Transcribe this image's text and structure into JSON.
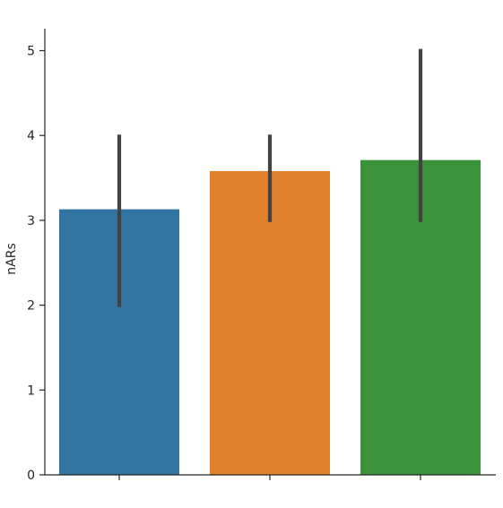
{
  "chart_data": {
    "type": "bar",
    "xlabel": "",
    "ylabel": "nARs",
    "ylim": [
      0,
      5.25
    ],
    "yticks": [
      0,
      1,
      2,
      3,
      4,
      5
    ],
    "grid": false,
    "bars": [
      {
        "value": 3.13,
        "ci_low": 1.98,
        "ci_high": 4.01,
        "color": "#3274a1"
      },
      {
        "value": 3.58,
        "ci_low": 2.98,
        "ci_high": 4.01,
        "color": "#e1812c"
      },
      {
        "value": 3.71,
        "ci_low": 2.98,
        "ci_high": 5.02,
        "color": "#3a923a"
      }
    ],
    "errorbar_color": "#424242",
    "axis_color": "#262626"
  }
}
